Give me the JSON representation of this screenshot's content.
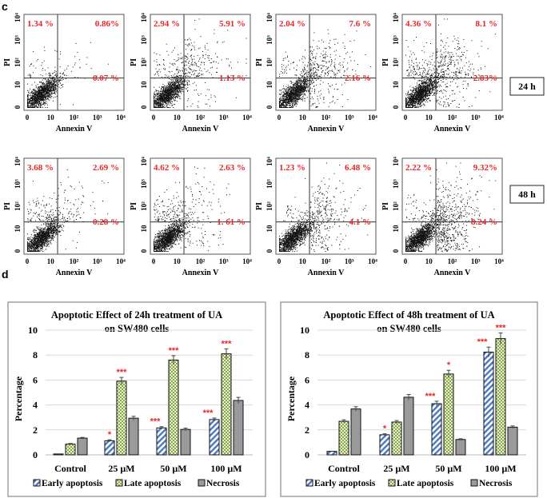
{
  "panel_labels": {
    "flow": "c",
    "bars": "d"
  },
  "flow_cytometry": {
    "x_axis_label": "Annexin V",
    "y_axis_label": "PI",
    "tick_labels": [
      "0",
      "10",
      "10²",
      "10³",
      "10⁴"
    ],
    "rows": [
      {
        "time_label": "24 h",
        "panels": [
          {
            "upper_left": "1.34 %",
            "upper_right": "0.86%",
            "lower_right": "0.07 %",
            "ul": 1.34,
            "ur": 0.86,
            "lr": 0.07
          },
          {
            "upper_left": "2.94 %",
            "upper_right": "5.91 %",
            "lower_right": "1.13 %",
            "ul": 2.94,
            "ur": 5.91,
            "lr": 1.13
          },
          {
            "upper_left": "2.04 %",
            "upper_right": "7.6 %",
            "lower_right": "2.16 %",
            "ul": 2.04,
            "ur": 7.6,
            "lr": 2.16
          },
          {
            "upper_left": "4.36 %",
            "upper_right": "8.1 %",
            "lower_right": "2.83%",
            "ul": 4.36,
            "ur": 8.1,
            "lr": 2.83
          }
        ]
      },
      {
        "time_label": "48 h",
        "panels": [
          {
            "upper_left": "3.68 %",
            "upper_right": "2.69 %",
            "lower_right": "0.28 %",
            "ul": 3.68,
            "ur": 2.69,
            "lr": 0.28
          },
          {
            "upper_left": "4.62 %",
            "upper_right": "2.63 %",
            "lower_right": "1. 61 %",
            "ul": 4.62,
            "ur": 2.63,
            "lr": 1.61
          },
          {
            "upper_left": "1.23 %",
            "upper_right": "6.48 %",
            "lower_right": "4.1 %",
            "ul": 1.23,
            "ur": 6.48,
            "lr": 4.1
          },
          {
            "upper_left": "2.22 %",
            "upper_right": "9.32%",
            "lower_right": "8.24 %",
            "ul": 2.22,
            "ur": 9.32,
            "lr": 8.24
          }
        ]
      }
    ]
  },
  "colors": {
    "annotation": "#e8262b",
    "early": "#4a78c2",
    "late": "#8aa848",
    "necrosis": "#9a9a9a"
  },
  "chart_data": [
    {
      "type": "bar",
      "title": [
        "Apoptotic Effect of 24h treatment of UA",
        "on SW480 cells"
      ],
      "ylabel": "Percentage",
      "xlabel": "",
      "ylim": [
        0,
        10
      ],
      "yticks": [
        "0",
        "2",
        "4",
        "6",
        "8",
        "10"
      ],
      "grid": true,
      "legend_position": "bottom",
      "categories": [
        "Control",
        "25 µM",
        "50 µM",
        "100 µM"
      ],
      "series": [
        {
          "name": "Early apoptosis",
          "values": [
            0.07,
            1.13,
            2.16,
            2.83
          ],
          "errors": [
            0.02,
            0.08,
            0.1,
            0.12
          ],
          "significance": [
            "",
            "*",
            "***",
            "***"
          ]
        },
        {
          "name": "Late apoptosis",
          "values": [
            0.86,
            5.91,
            7.6,
            8.1
          ],
          "errors": [
            0.05,
            0.3,
            0.35,
            0.4
          ],
          "significance": [
            "",
            "***",
            "***",
            "***"
          ]
        },
        {
          "name": "Necrosis",
          "values": [
            1.34,
            2.94,
            2.04,
            4.36
          ],
          "errors": [
            0.06,
            0.15,
            0.1,
            0.25
          ],
          "significance": [
            "",
            "",
            "",
            ""
          ]
        }
      ]
    },
    {
      "type": "bar",
      "title": [
        "Apoptotic Effect of 48h treatment of UA",
        "on SW480 cells"
      ],
      "ylabel": "Percentage",
      "xlabel": "",
      "ylim": [
        0,
        10
      ],
      "yticks": [
        "0",
        "2",
        "4",
        "6",
        "8",
        "10"
      ],
      "grid": true,
      "legend_position": "bottom",
      "categories": [
        "Control",
        "25 µM",
        "50 µM",
        "100 µM"
      ],
      "series": [
        {
          "name": "Early apoptosis",
          "values": [
            0.28,
            1.61,
            4.1,
            8.24
          ],
          "errors": [
            0.03,
            0.08,
            0.2,
            0.4
          ],
          "significance": [
            "",
            "*",
            "***",
            "***"
          ]
        },
        {
          "name": "Late apoptosis",
          "values": [
            2.69,
            2.63,
            6.48,
            9.32
          ],
          "errors": [
            0.12,
            0.12,
            0.3,
            0.45
          ],
          "significance": [
            "",
            "",
            "*",
            "***"
          ]
        },
        {
          "name": "Necrosis",
          "values": [
            3.68,
            4.62,
            1.23,
            2.22
          ],
          "errors": [
            0.18,
            0.22,
            0.06,
            0.1
          ],
          "significance": [
            "",
            "",
            "",
            ""
          ]
        }
      ]
    }
  ]
}
